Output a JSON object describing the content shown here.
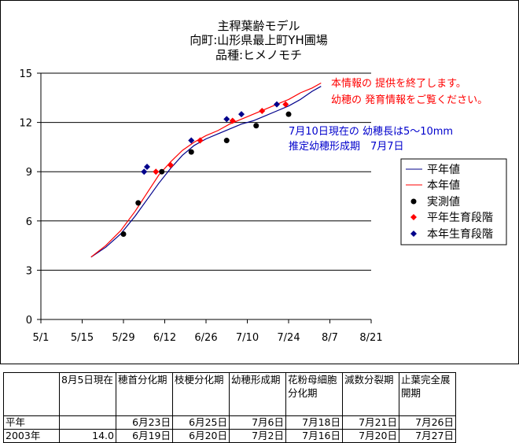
{
  "chart_data": {
    "type": "line",
    "title": [
      "主稈葉齢モデル",
      "向町:山形県最上町YH圃場",
      "品種:ヒメノモチ"
    ],
    "xlabel": "",
    "ylabel": "",
    "x_tick_labels": [
      "5/1",
      "5/15",
      "5/29",
      "6/12",
      "6/26",
      "7/10",
      "7/24",
      "8/7",
      "8/21"
    ],
    "x_tick_days": [
      0,
      14,
      28,
      42,
      56,
      70,
      84,
      98,
      112
    ],
    "x_axis_unit": "days from 5/1",
    "xlim": [
      0,
      112
    ],
    "ylim": [
      0,
      15
    ],
    "y_ticks": [
      0,
      3,
      6,
      9,
      12,
      15
    ],
    "grid": "horizontal",
    "legend_position": "right",
    "series": [
      {
        "name": "平年値",
        "kind": "line",
        "color": "#00008b",
        "points": [
          [
            17,
            3.8
          ],
          [
            22,
            4.4
          ],
          [
            27,
            5.2
          ],
          [
            32,
            6.3
          ],
          [
            36,
            7.3
          ],
          [
            40,
            8.3
          ],
          [
            44,
            9.2
          ],
          [
            48,
            10.0
          ],
          [
            52,
            10.6
          ],
          [
            56,
            11.0
          ],
          [
            60,
            11.3
          ],
          [
            64,
            11.6
          ],
          [
            68,
            11.9
          ],
          [
            72,
            12.1
          ],
          [
            76,
            12.4
          ],
          [
            80,
            12.7
          ],
          [
            84,
            13.0
          ],
          [
            88,
            13.4
          ],
          [
            92,
            13.9
          ],
          [
            95,
            14.2
          ]
        ]
      },
      {
        "name": "本年値",
        "kind": "line",
        "color": "#ff0000",
        "points": [
          [
            17,
            3.8
          ],
          [
            22,
            4.5
          ],
          [
            27,
            5.4
          ],
          [
            32,
            6.6
          ],
          [
            36,
            7.7
          ],
          [
            40,
            8.8
          ],
          [
            44,
            9.6
          ],
          [
            48,
            10.3
          ],
          [
            52,
            10.8
          ],
          [
            56,
            11.2
          ],
          [
            60,
            11.5
          ],
          [
            64,
            11.9
          ],
          [
            68,
            12.2
          ],
          [
            72,
            12.5
          ],
          [
            76,
            12.8
          ],
          [
            80,
            13.1
          ],
          [
            84,
            13.4
          ],
          [
            88,
            13.8
          ],
          [
            92,
            14.1
          ],
          [
            95,
            14.4
          ]
        ]
      },
      {
        "name": "実測値",
        "kind": "marker",
        "shape": "circle",
        "color": "#000000",
        "points": [
          [
            28,
            5.2
          ],
          [
            33,
            7.1
          ],
          [
            41,
            9.0
          ],
          [
            51,
            10.2
          ],
          [
            63,
            10.9
          ],
          [
            73,
            11.8
          ],
          [
            84,
            12.5
          ]
        ]
      },
      {
        "name": "平年生育段階",
        "kind": "marker",
        "shape": "diamond",
        "color": "#ff0000",
        "points": [
          [
            39,
            9.0
          ],
          [
            44,
            9.4
          ],
          [
            54,
            10.9
          ],
          [
            65,
            12.1
          ],
          [
            75,
            12.7
          ],
          [
            83,
            13.1
          ]
        ]
      },
      {
        "name": "本年生育段階",
        "kind": "marker",
        "shape": "diamond",
        "color": "#00008b",
        "points": [
          [
            35,
            9.0
          ],
          [
            36,
            9.3
          ],
          [
            51,
            10.9
          ],
          [
            63,
            12.2
          ],
          [
            68,
            12.5
          ],
          [
            80,
            13.1
          ]
        ]
      }
    ],
    "annotations": [
      {
        "text": "本情報の 提供を終了します。",
        "color": "#ff0000"
      },
      {
        "text": "幼穂の 発育情報をご覧ください。",
        "color": "#ff0000"
      },
      {
        "text": "7月10日現在の 幼穂長は5～10mm",
        "color": "#0000cc"
      },
      {
        "text": "推定幼穂形成期　7月7日",
        "color": "#0000cc"
      }
    ]
  },
  "table": {
    "headers": [
      "",
      "8月5日現在",
      "穂首分化期",
      "枝梗分化期",
      "幼穂形成期",
      "花粉母細胞分化期",
      "減数分裂期",
      "止葉完全展開期"
    ],
    "rows": [
      [
        "平年",
        "",
        "6月23日",
        "6月25日",
        "7月6日",
        "7月18日",
        "7月21日",
        "7月26日"
      ],
      [
        "2003年",
        "14.0",
        "6月19日",
        "6月20日",
        "7月2日",
        "7月16日",
        "7月20日",
        "7月27日"
      ]
    ]
  }
}
